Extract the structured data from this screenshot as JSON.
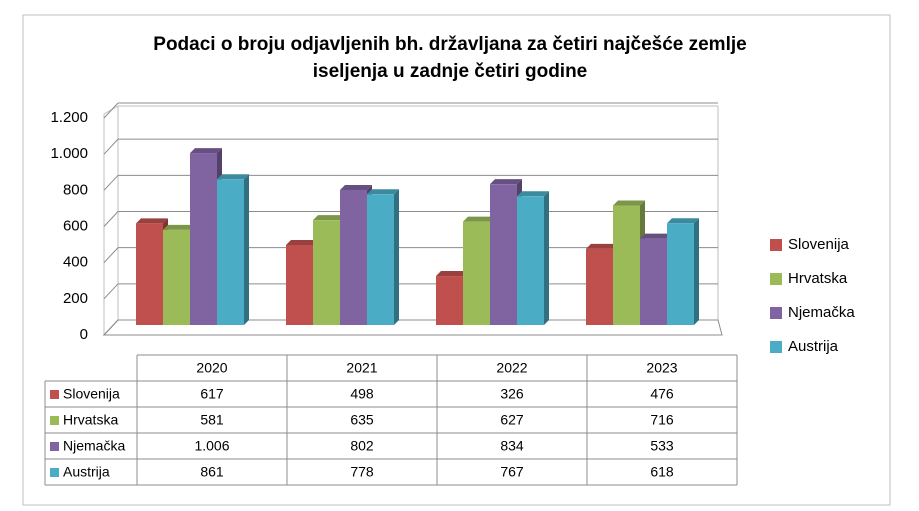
{
  "chart_data": {
    "type": "bar3d",
    "title": [
      "Podaci o broju odjavljenih bh. državljana za četiri najčešće zemlje",
      "iseljenja u zadnje četiri godine"
    ],
    "categories": [
      "2020",
      "2021",
      "2022",
      "2023"
    ],
    "series": [
      {
        "name": "Slovenija",
        "color": "#c0504d",
        "values": [
          617,
          498,
          326,
          476
        ]
      },
      {
        "name": "Hrvatska",
        "color": "#9bbb59",
        "values": [
          581,
          635,
          627,
          716
        ]
      },
      {
        "name": "Njemačka",
        "color": "#8064a2",
        "values": [
          1006,
          802,
          834,
          533
        ],
        "value_labels": [
          "1.006",
          "802",
          "834",
          "533"
        ]
      },
      {
        "name": "Austrija",
        "color": "#4bacc6",
        "values": [
          861,
          778,
          767,
          618
        ]
      }
    ],
    "ylim": [
      0,
      1200
    ],
    "yticks": [
      0,
      200,
      400,
      600,
      800,
      {
        "value": 1000,
        "label": "1.000"
      },
      {
        "value": 1200,
        "label": "1.200"
      }
    ],
    "grid": true,
    "legend": "right",
    "data_table": true
  }
}
